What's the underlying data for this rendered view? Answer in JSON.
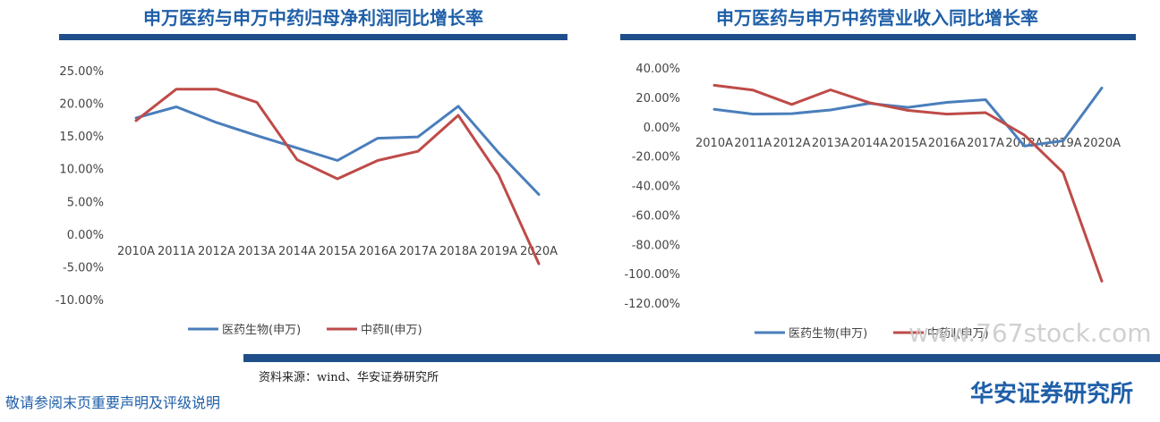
{
  "source": "资料来源：wind、华安证券研究所",
  "disclaimer": "敬请参阅末页重要声明及评级说明",
  "brand": "华安证券研究所",
  "watermark": "www.767stock.com",
  "colors": {
    "blue": "#4a7ebb",
    "red": "#be4b48",
    "title": "#1f5fa8",
    "bar": "#1e4f8a"
  },
  "chart_data": [
    {
      "type": "line",
      "title": "申万医药与申万中药归母净利润同比增长率",
      "categories": [
        "2010A",
        "2011A",
        "2012A",
        "2013A",
        "2014A",
        "2015A",
        "2016A",
        "2017A",
        "2018A",
        "2019A",
        "2020A"
      ],
      "ylim": [
        -0.1,
        0.25
      ],
      "yticks": [
        "25.00%",
        "20.00%",
        "15.00%",
        "10.00%",
        "5.00%",
        "0.00%",
        "-5.00%",
        "-10.00%"
      ],
      "ytick_values": [
        0.25,
        0.2,
        0.15,
        0.1,
        0.05,
        0.0,
        -0.05,
        -0.1
      ],
      "gridlines": false,
      "legend": "bottom",
      "series": [
        {
          "name": "医药生物(申万)",
          "color": "#4a7ebb",
          "values": [
            0.179,
            0.196,
            0.172,
            0.152,
            0.133,
            0.114,
            0.148,
            0.15,
            0.197,
            0.126,
            0.062
          ]
        },
        {
          "name": "中药Ⅱ(申万)",
          "color": "#be4b48",
          "values": [
            0.175,
            0.223,
            0.223,
            0.203,
            0.115,
            0.086,
            0.114,
            0.128,
            0.183,
            0.092,
            -0.044
          ]
        }
      ]
    },
    {
      "type": "line",
      "title": "申万医药与申万中药营业收入同比增长率",
      "categories": [
        "2010A",
        "2011A",
        "2012A",
        "2013A",
        "2014A",
        "2015A",
        "2016A",
        "2017A",
        "2018A",
        "2019A",
        "2020A"
      ],
      "ylim": [
        -1.2,
        0.4
      ],
      "yticks": [
        "40.00%",
        "20.00%",
        "0.00%",
        "-20.00%",
        "-40.00%",
        "-60.00%",
        "-80.00%",
        "-100.00%",
        "-120.00%"
      ],
      "ytick_values": [
        0.4,
        0.2,
        0.0,
        -0.2,
        -0.4,
        -0.6,
        -0.8,
        -1.0,
        -1.2
      ],
      "gridlines": false,
      "legend": "bottom",
      "series": [
        {
          "name": "医药生物(申万)",
          "color": "#4a7ebb",
          "values": [
            0.125,
            0.092,
            0.095,
            0.12,
            0.165,
            0.138,
            0.172,
            0.19,
            -0.125,
            -0.09,
            0.27
          ]
        },
        {
          "name": "中药Ⅱ(申万)",
          "color": "#be4b48",
          "values": [
            0.288,
            0.255,
            0.158,
            0.257,
            0.17,
            0.117,
            0.092,
            0.102,
            -0.05,
            -0.305,
            -1.045
          ]
        }
      ]
    }
  ]
}
